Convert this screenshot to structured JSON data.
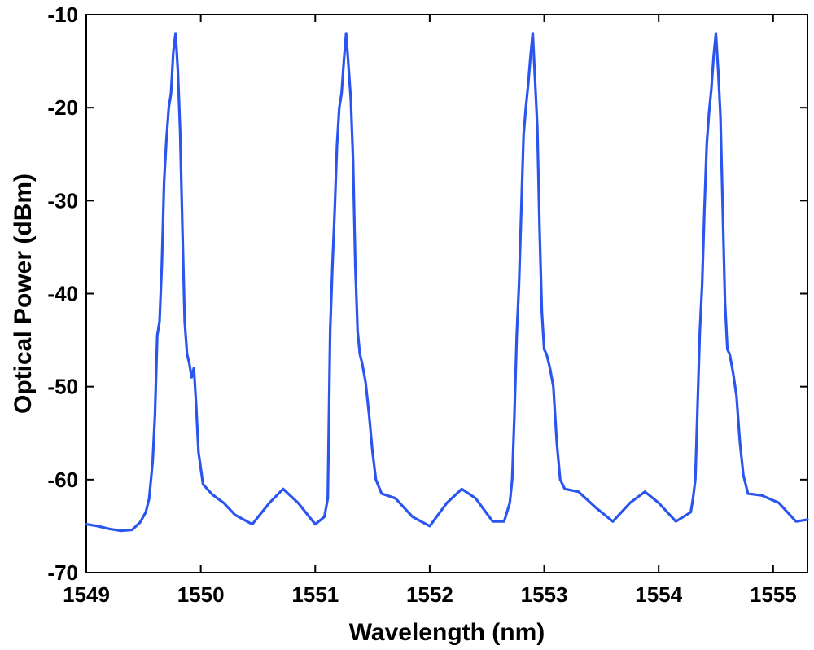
{
  "chart_data": {
    "type": "line",
    "title": "",
    "xlabel": "Wavelength (nm)",
    "ylabel": "Optical Power (dBm)",
    "xlim": [
      1549,
      1555.3
    ],
    "ylim": [
      -70,
      -10
    ],
    "xticks": [
      1549,
      1550,
      1551,
      1552,
      1553,
      1554,
      1555
    ],
    "yticks": [
      -70,
      -60,
      -50,
      -40,
      -30,
      -20,
      -10
    ],
    "grid": false,
    "legend": "none",
    "line_color": "#2b55ef",
    "series": [
      {
        "x": [
          1549.0,
          1549.1,
          1549.2,
          1549.3,
          1549.4,
          1549.47,
          1549.52,
          1549.55,
          1549.58,
          1549.6,
          1549.62,
          1549.64,
          1549.66,
          1549.68,
          1549.7,
          1549.72,
          1549.74,
          1549.76,
          1549.78,
          1549.8,
          1549.82,
          1549.84,
          1549.86,
          1549.88,
          1549.9,
          1549.92,
          1549.94,
          1549.96,
          1549.98,
          1550.02,
          1550.1,
          1550.2,
          1550.3,
          1550.45,
          1550.6,
          1550.72,
          1550.85,
          1551.0,
          1551.08,
          1551.11,
          1551.13,
          1551.15,
          1551.17,
          1551.19,
          1551.21,
          1551.23,
          1551.25,
          1551.27,
          1551.29,
          1551.31,
          1551.33,
          1551.35,
          1551.37,
          1551.39,
          1551.41,
          1551.44,
          1551.47,
          1551.5,
          1551.53,
          1551.58,
          1551.7,
          1551.85,
          1552.0,
          1552.15,
          1552.28,
          1552.4,
          1552.55,
          1552.65,
          1552.7,
          1552.72,
          1552.74,
          1552.76,
          1552.78,
          1552.8,
          1552.82,
          1552.84,
          1552.86,
          1552.88,
          1552.9,
          1552.92,
          1552.94,
          1552.96,
          1552.98,
          1553.0,
          1553.02,
          1553.05,
          1553.08,
          1553.11,
          1553.14,
          1553.18,
          1553.3,
          1553.45,
          1553.6,
          1553.75,
          1553.88,
          1554.0,
          1554.15,
          1554.28,
          1554.3,
          1554.32,
          1554.34,
          1554.36,
          1554.38,
          1554.4,
          1554.42,
          1554.44,
          1554.46,
          1554.48,
          1554.5,
          1554.52,
          1554.54,
          1554.56,
          1554.58,
          1554.6,
          1554.62,
          1554.65,
          1554.68,
          1554.71,
          1554.74,
          1554.78,
          1554.9,
          1555.05,
          1555.2,
          1555.3
        ],
        "values": [
          -64.8,
          -65.0,
          -65.3,
          -65.5,
          -65.4,
          -64.6,
          -63.5,
          -62.0,
          -58.0,
          -53.0,
          -44.5,
          -43.0,
          -37.0,
          -28.0,
          -23.5,
          -20.0,
          -18.5,
          -14.0,
          -12.0,
          -16.0,
          -22.5,
          -33.0,
          -43.0,
          -46.5,
          -47.5,
          -49.0,
          -48.0,
          -52.0,
          -57.0,
          -60.5,
          -61.6,
          -62.5,
          -63.8,
          -64.8,
          -62.5,
          -61.0,
          -62.5,
          -64.8,
          -64.0,
          -62.0,
          -44.0,
          -37.0,
          -31.0,
          -24.0,
          -20.0,
          -18.5,
          -15.0,
          -12.0,
          -15.5,
          -19.0,
          -25.5,
          -37.0,
          -44.0,
          -46.5,
          -47.5,
          -49.5,
          -53.0,
          -57.0,
          -60.0,
          -61.5,
          -62.0,
          -64.0,
          -65.0,
          -62.5,
          -61.0,
          -62.0,
          -64.5,
          -64.5,
          -62.5,
          -60.0,
          -53.0,
          -44.5,
          -39.0,
          -31.0,
          -23.0,
          -20.0,
          -17.5,
          -14.5,
          -12.0,
          -17.0,
          -22.0,
          -33.0,
          -42.0,
          -46.0,
          -46.5,
          -48.0,
          -50.0,
          -56.0,
          -60.0,
          -61.0,
          -61.3,
          -63.0,
          -64.5,
          -62.5,
          -61.3,
          -62.5,
          -64.5,
          -63.5,
          -62.0,
          -60.0,
          -52.0,
          -44.0,
          -39.0,
          -31.0,
          -24.0,
          -20.5,
          -18.0,
          -14.5,
          -12.0,
          -16.0,
          -21.0,
          -31.0,
          -41.0,
          -46.0,
          -46.5,
          -48.5,
          -51.0,
          -56.0,
          -59.5,
          -61.5,
          -61.7,
          -62.5,
          -64.5,
          -64.3
        ]
      }
    ]
  }
}
